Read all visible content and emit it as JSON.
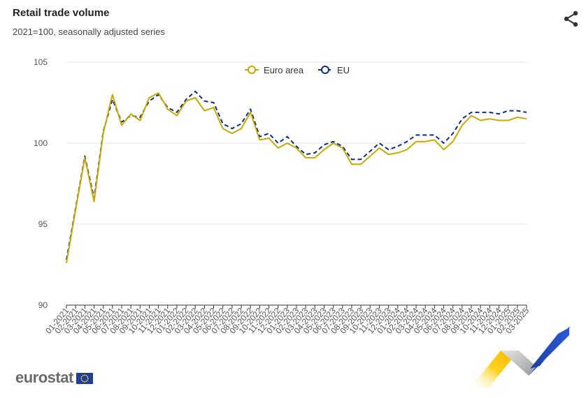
{
  "header": {
    "title": "Retail trade volume",
    "subtitle": "2021=100, seasonally adjusted series"
  },
  "footer": {
    "logo_text": "eurostat"
  },
  "icons": {
    "share": "share-icon",
    "flag": "eu-flag-icon"
  },
  "chart_data": {
    "type": "line",
    "title": "Retail trade volume",
    "subtitle": "2021=100, seasonally adjusted series",
    "xlabel": "",
    "ylabel": "",
    "ylim": [
      90,
      105
    ],
    "yticks": [
      90,
      95,
      100,
      105
    ],
    "grid": true,
    "legend_position": "top-center",
    "x": [
      "01-2021",
      "02-2021",
      "03-2021",
      "04-2021",
      "05-2021",
      "06-2021",
      "07-2021",
      "08-2021",
      "09-2021",
      "10-2021",
      "11-2021",
      "12-2021",
      "01-2022",
      "02-2022",
      "03-2022",
      "04-2022",
      "05-2022",
      "06-2022",
      "07-2022",
      "08-2022",
      "09-2022",
      "10-2022",
      "11-2022",
      "12-2022",
      "01-2023",
      "02-2023",
      "03-2023",
      "04-2023",
      "05-2023",
      "06-2023",
      "07-2023",
      "08-2023",
      "09-2023",
      "10-2023",
      "11-2023",
      "12-2023",
      "01-2024",
      "02-2024",
      "03-2024",
      "04-2024",
      "05-2024",
      "06-2024",
      "07-2024",
      "08-2024",
      "09-2024",
      "10-2024",
      "11-2024",
      "12-2024",
      "01-2025",
      "02-2025",
      "03-2025"
    ],
    "series": [
      {
        "name": "Euro area",
        "color": "#c9a800",
        "style": "solid",
        "values": [
          92.6,
          95.9,
          99.1,
          96.4,
          100.6,
          103.0,
          101.1,
          101.8,
          101.4,
          102.8,
          103.1,
          102.1,
          101.7,
          102.6,
          102.8,
          102.0,
          102.2,
          100.9,
          100.6,
          100.9,
          101.9,
          100.2,
          100.3,
          99.7,
          100.0,
          99.7,
          99.1,
          99.1,
          99.6,
          100.0,
          99.7,
          98.7,
          98.7,
          99.2,
          99.7,
          99.3,
          99.4,
          99.6,
          100.1,
          100.1,
          100.2,
          99.6,
          100.1,
          101.1,
          101.7,
          101.4,
          101.5,
          101.4,
          101.4,
          101.6,
          101.5
        ]
      },
      {
        "name": "EU",
        "color": "#0e2f7e",
        "style": "dashed",
        "values": [
          92.8,
          96.0,
          99.2,
          96.6,
          100.7,
          102.7,
          101.3,
          101.7,
          101.6,
          102.6,
          103.0,
          102.2,
          101.9,
          102.7,
          103.2,
          102.6,
          102.5,
          101.2,
          100.9,
          101.2,
          102.1,
          100.4,
          100.6,
          100.0,
          100.4,
          99.8,
          99.3,
          99.4,
          99.9,
          100.1,
          99.8,
          99.0,
          99.0,
          99.5,
          100.0,
          99.6,
          99.8,
          100.1,
          100.5,
          100.5,
          100.5,
          100.0,
          100.6,
          101.5,
          101.9,
          101.9,
          101.9,
          101.8,
          102.0,
          102.0,
          101.9
        ]
      }
    ]
  }
}
